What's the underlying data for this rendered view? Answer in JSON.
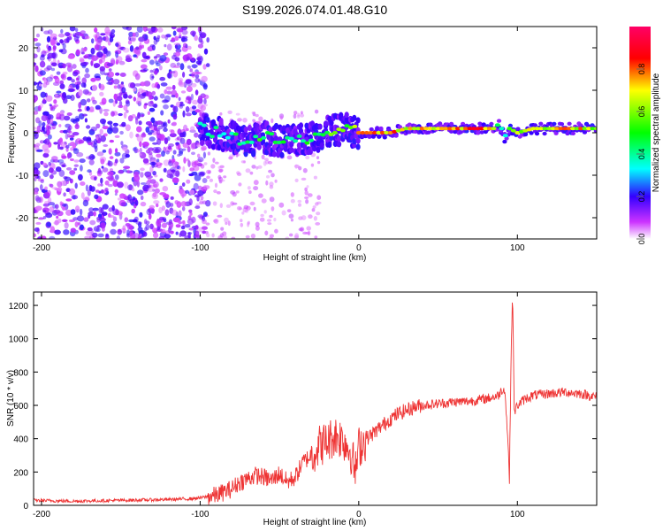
{
  "title": "S199.2026.074.01.48.G10",
  "chart_data": [
    {
      "type": "heatmap",
      "xlabel": "Height of straight line (km)",
      "ylabel": "Frequency (Hz)",
      "xlim": [
        -205,
        150
      ],
      "ylim": [
        -25,
        25
      ],
      "xticks": [
        -200,
        -100,
        0,
        100
      ],
      "yticks": [
        -20,
        -10,
        0,
        10,
        20
      ],
      "xtick_labels": [
        "-200",
        "-100",
        "0",
        "100"
      ],
      "ytick_labels": [
        "-20",
        "-10",
        "0",
        "10",
        "20"
      ],
      "ridge": {
        "description_free_points_x": [
          -100,
          -90,
          -80,
          -70,
          -60,
          -50,
          -40,
          -30,
          -20,
          -10,
          0,
          10,
          20,
          30,
          40,
          50,
          60,
          70,
          80,
          85,
          88,
          90,
          92,
          95,
          100,
          110,
          120,
          130,
          140,
          150
        ],
        "frequency": [
          1,
          0,
          -1,
          -2,
          -1,
          -2,
          -2,
          -1,
          0,
          1,
          0,
          0,
          0,
          1,
          1,
          1,
          1,
          1,
          1,
          1,
          2,
          1,
          -1,
          1,
          0,
          1,
          1,
          1,
          1,
          1
        ],
        "amplitude": [
          0.35,
          0.45,
          0.45,
          0.5,
          0.5,
          0.5,
          0.45,
          0.5,
          0.55,
          0.6,
          0.75,
          0.8,
          0.8,
          0.7,
          0.75,
          0.8,
          0.85,
          0.85,
          0.8,
          0.75,
          0.5,
          0.4,
          0.4,
          0.6,
          0.65,
          0.7,
          0.75,
          0.8,
          0.75,
          0.6
        ]
      }
    },
    {
      "type": "colorbar",
      "label": "Normalized spectral amplitude",
      "range": [
        0,
        1
      ],
      "ticks": [
        0.0,
        0.2,
        0.4,
        0.6,
        0.8
      ],
      "tick_labels": [
        "0.0",
        "0.2",
        "0.4",
        "0.6",
        "0.8"
      ],
      "colors": [
        "#ffffff",
        "#cc33ff",
        "#3300ff",
        "#00ffff",
        "#00ff00",
        "#ffff00",
        "#ff0000",
        "#ff0066"
      ]
    },
    {
      "type": "line",
      "xlabel": "Height of straight line (km)",
      "ylabel": "SNR (10 * v/v)",
      "xlim": [
        -205,
        150
      ],
      "ylim": [
        0,
        1280
      ],
      "xticks": [
        -200,
        -100,
        0,
        100
      ],
      "yticks": [
        0,
        200,
        400,
        600,
        800,
        1000,
        1200
      ],
      "xtick_labels": [
        "-200",
        "-100",
        "0",
        "100"
      ],
      "ytick_labels": [
        "0",
        "200",
        "400",
        "600",
        "800",
        "1000",
        "1200"
      ],
      "series": [
        {
          "name": "SNR",
          "color": "#ee3333",
          "x": [
            -205,
            -180,
            -150,
            -120,
            -105,
            -100,
            -90,
            -80,
            -75,
            -70,
            -65,
            -60,
            -55,
            -50,
            -45,
            -40,
            -35,
            -30,
            -25,
            -20,
            -15,
            -10,
            -5,
            -2,
            0,
            5,
            10,
            15,
            20,
            25,
            30,
            35,
            40,
            50,
            60,
            70,
            80,
            85,
            88,
            90,
            92,
            94,
            95,
            96,
            97,
            98,
            100,
            105,
            110,
            120,
            130,
            140,
            150
          ],
          "y": [
            30,
            25,
            30,
            35,
            40,
            45,
            60,
            100,
            140,
            160,
            180,
            170,
            150,
            190,
            140,
            170,
            260,
            300,
            360,
            380,
            420,
            400,
            320,
            200,
            350,
            400,
            440,
            480,
            520,
            550,
            570,
            590,
            600,
            610,
            620,
            625,
            640,
            650,
            660,
            690,
            700,
            400,
            150,
            900,
            1280,
            560,
            600,
            640,
            660,
            670,
            680,
            670,
            650
          ]
        }
      ]
    }
  ]
}
